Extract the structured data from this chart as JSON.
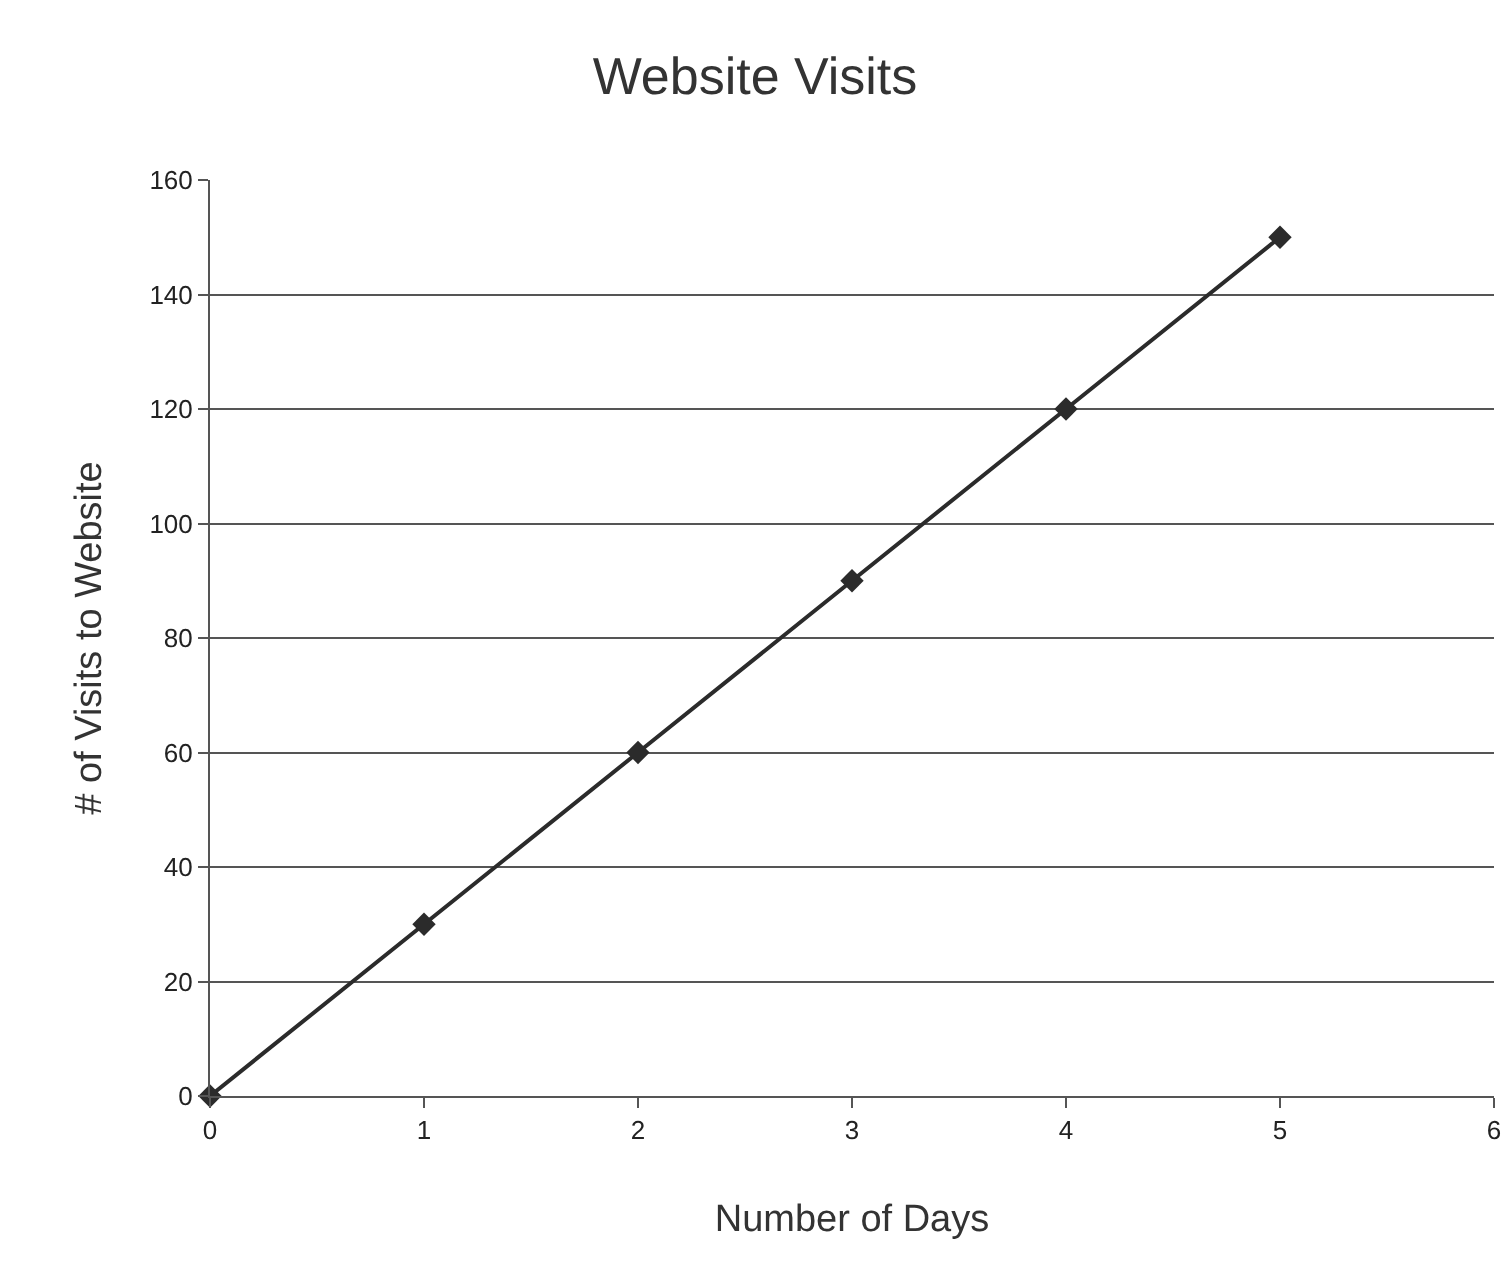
{
  "chart_data": {
    "type": "line",
    "title": "Website Visits",
    "xlabel": "Number of Days",
    "ylabel": "# of Visits to Website",
    "x": [
      0,
      1,
      2,
      3,
      4,
      5
    ],
    "series": [
      {
        "color": "#2b2b2b",
        "values": [
          0,
          30,
          60,
          90,
          120,
          150
        ]
      }
    ],
    "xlim": [
      0,
      6
    ],
    "xticks": [
      0,
      1,
      2,
      3,
      4,
      5,
      6
    ],
    "ylim": [
      0,
      160
    ],
    "yticks": [
      0,
      20,
      40,
      60,
      80,
      100,
      120,
      140,
      160
    ],
    "grid": "y",
    "legend": false,
    "marker": "diamond",
    "line_style": "solid"
  }
}
